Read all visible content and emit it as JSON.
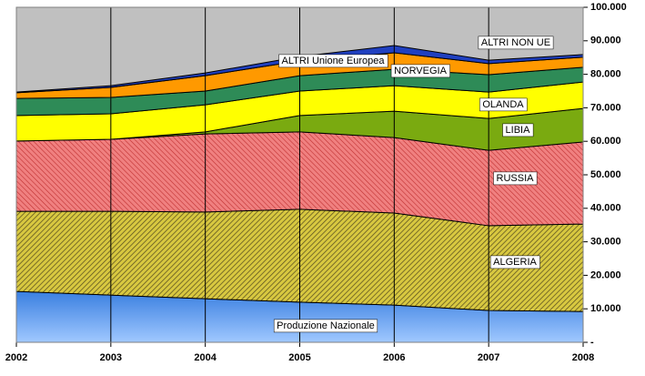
{
  "chart_data": {
    "type": "stacked-area",
    "x": [
      2002,
      2003,
      2004,
      2005,
      2006,
      2007,
      2008
    ],
    "xlim": [
      2002,
      2008
    ],
    "xticks": [
      2002,
      2003,
      2004,
      2005,
      2006,
      2007,
      2008
    ],
    "ylim": [
      0,
      100000
    ],
    "yticks": [
      {
        "value": 0,
        "label": "-"
      },
      {
        "value": 10000,
        "label": "10.000"
      },
      {
        "value": 20000,
        "label": "20.000"
      },
      {
        "value": 30000,
        "label": "30.000"
      },
      {
        "value": 40000,
        "label": "40.000"
      },
      {
        "value": 50000,
        "label": "50.000"
      },
      {
        "value": 60000,
        "label": "60.000"
      },
      {
        "value": 70000,
        "label": "70.000"
      },
      {
        "value": 80000,
        "label": "80.000"
      },
      {
        "value": 90000,
        "label": "90.000"
      },
      {
        "value": 100000,
        "label": "100.000"
      }
    ],
    "y_axis_side": "right",
    "grid": "x",
    "series": [
      {
        "name": "Produzione Nazionale",
        "color": "#3a7fe0",
        "values": [
          15200,
          14100,
          13000,
          12000,
          11100,
          9500,
          9200
        ]
      },
      {
        "name": "ALGERIA",
        "color": "#b8a830",
        "values": [
          23900,
          25000,
          25900,
          27700,
          27500,
          25300,
          26100
        ]
      },
      {
        "name": "RUSSIA",
        "color": "#e86a6a",
        "values": [
          21000,
          21500,
          23300,
          23100,
          22500,
          22500,
          24500
        ]
      },
      {
        "name": "LIBIA",
        "color": "#7aaa10",
        "values": [
          0,
          0,
          600,
          4900,
          7900,
          9500,
          10000
        ]
      },
      {
        "name": "OLANDA",
        "color": "#ffff00",
        "values": [
          7600,
          7600,
          8100,
          7300,
          7600,
          7900,
          7900
        ]
      },
      {
        "name": "NORVEGIA",
        "color": "#2e8b57",
        "values": [
          5100,
          4900,
          4100,
          4600,
          4900,
          5200,
          4400
        ]
      },
      {
        "name": "ALTRI  Unione Europea",
        "color": "#ff9900",
        "values": [
          1700,
          3000,
          4600,
          4400,
          4900,
          3300,
          3000
        ]
      },
      {
        "name": "ALTRI NON  UE",
        "color": "#2040c0",
        "values": [
          200,
          500,
          800,
          1300,
          2200,
          1000,
          800
        ]
      }
    ]
  }
}
